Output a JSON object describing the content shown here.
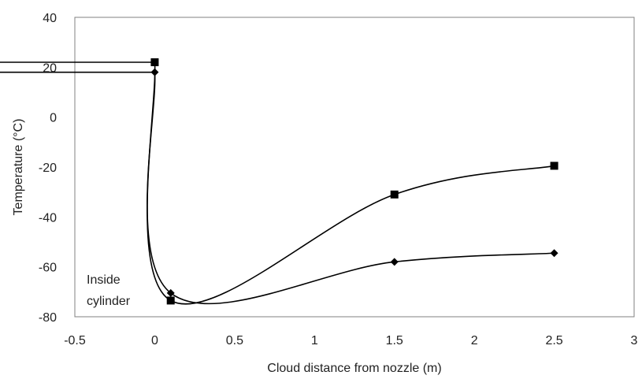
{
  "chart_data": {
    "type": "scatter",
    "xlabel": "Cloud distance from nozzle (m)",
    "ylabel": "Temperature (°C)",
    "xlim": [
      -0.5,
      3
    ],
    "ylim": [
      -80,
      40
    ],
    "x_ticks": [
      "-0.5",
      "0",
      "0.5",
      "1",
      "1.5",
      "2",
      "2.5",
      "3"
    ],
    "y_ticks": [
      "40",
      "20",
      "0",
      "-20",
      "-40",
      "-60",
      "-80"
    ],
    "x_tick_values": [
      -0.5,
      0,
      0.5,
      1,
      1.5,
      2,
      2.5,
      3
    ],
    "y_tick_values": [
      40,
      20,
      0,
      -20,
      -40,
      -60,
      -80
    ],
    "grid": false,
    "legend": "none",
    "smooth_lines": true,
    "annotation": {
      "lines": [
        "Inside",
        "cylinder"
      ]
    },
    "series": [
      {
        "marker": "square",
        "color": "#000000",
        "x": [
          0,
          0.1,
          1.5,
          2.5
        ],
        "y": [
          22,
          -73.5,
          -31,
          -19.5
        ],
        "inside_cylinder_value": 22
      },
      {
        "marker": "diamond",
        "color": "#000000",
        "x": [
          0,
          0.1,
          1.5,
          2.5
        ],
        "y": [
          18,
          -70.5,
          -58,
          -54.5
        ],
        "inside_cylinder_value": 18
      }
    ]
  }
}
